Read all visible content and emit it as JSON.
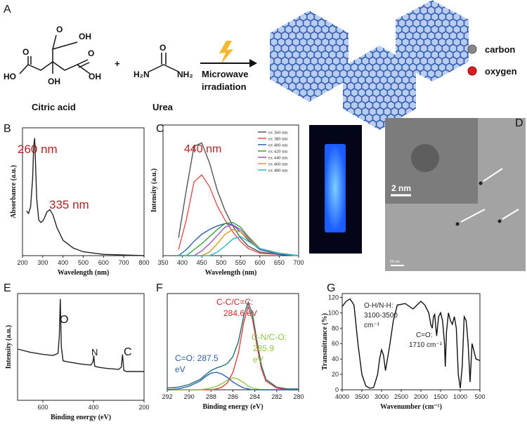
{
  "panels": [
    "A",
    "B",
    "C",
    "D",
    "E",
    "F",
    "G"
  ],
  "scheme": {
    "atoms": [
      "O",
      "OH",
      "O",
      "O",
      "HO",
      "OH",
      "OH",
      "O",
      "H₂N",
      "NH₂"
    ],
    "plus": "+",
    "names": [
      "Citric acid",
      "Urea"
    ],
    "arrow_label": [
      "Microwave",
      "irradiation"
    ],
    "legend": [
      "carbon",
      "oxygen"
    ]
  },
  "tem": {
    "scale_inset": "2 nm",
    "scale_main": "50 nm"
  },
  "chart_data": [
    {
      "type": "line",
      "xlabel": "Wavelength (nm)",
      "ylabel": "Absorbance (a.u.)",
      "xlim": [
        200,
        800
      ],
      "ylim": [
        0,
        1
      ],
      "xticks": [
        200,
        300,
        400,
        500,
        600,
        700,
        800
      ],
      "x": [
        220,
        230,
        240,
        250,
        255,
        260,
        265,
        270,
        280,
        290,
        300,
        310,
        320,
        335,
        350,
        370,
        400,
        450,
        500,
        600,
        700,
        800
      ],
      "series": [
        {
          "color": "#222222",
          "values": [
            0.35,
            0.33,
            0.38,
            0.6,
            0.85,
            0.92,
            0.7,
            0.45,
            0.28,
            0.26,
            0.27,
            0.3,
            0.34,
            0.36,
            0.32,
            0.22,
            0.12,
            0.06,
            0.03,
            0.01,
            0.005,
            0
          ]
        }
      ],
      "annotations": [
        {
          "text": "260 nm",
          "color": "#b22222"
        },
        {
          "text": "335 nm",
          "color": "#b22222"
        }
      ]
    },
    {
      "type": "line",
      "xlabel": "Wavelength (nm)",
      "ylabel": "Intensity (a.u.)",
      "xlim": [
        350,
        700
      ],
      "ylim": [
        0,
        1.1
      ],
      "xticks": [
        350,
        400,
        450,
        500,
        550,
        600,
        650,
        700
      ],
      "legend": true,
      "x": [
        390,
        410,
        430,
        450,
        470,
        490,
        510,
        530,
        550,
        570,
        600,
        650,
        700
      ],
      "series": [
        {
          "name": "ex 360 nm",
          "color": "#555555",
          "values": [
            0.15,
            0.55,
            0.92,
            0.95,
            0.78,
            0.55,
            0.38,
            0.25,
            0.15,
            0.08,
            0.03,
            0.01,
            0
          ]
        },
        {
          "name": "ex 380 nm",
          "color": "#d9534f",
          "values": [
            0.05,
            0.3,
            0.62,
            0.68,
            0.58,
            0.42,
            0.3,
            0.2,
            0.12,
            0.06,
            0.02,
            0.01,
            0
          ]
        },
        {
          "name": "ex 400 nm",
          "color": "#2e5fa8",
          "values": [
            0,
            0.05,
            0.12,
            0.18,
            0.22,
            0.25,
            0.27,
            0.26,
            0.2,
            0.13,
            0.05,
            0.01,
            0
          ]
        },
        {
          "name": "ex 420 nm",
          "color": "#3a9e3a",
          "values": [
            0,
            0,
            0.05,
            0.1,
            0.16,
            0.22,
            0.27,
            0.28,
            0.24,
            0.16,
            0.06,
            0.02,
            0
          ]
        },
        {
          "name": "ex 440 nm",
          "color": "#9b59b6",
          "values": [
            0,
            0,
            0,
            0.04,
            0.1,
            0.17,
            0.24,
            0.26,
            0.22,
            0.15,
            0.06,
            0.02,
            0
          ]
        },
        {
          "name": "ex 460 nm",
          "color": "#d99a1a",
          "values": [
            0,
            0,
            0,
            0,
            0.03,
            0.1,
            0.18,
            0.22,
            0.2,
            0.14,
            0.06,
            0.02,
            0
          ]
        },
        {
          "name": "ex 480 nm",
          "color": "#2ab6c8",
          "values": [
            0,
            0,
            0,
            0,
            0,
            0.03,
            0.08,
            0.14,
            0.16,
            0.12,
            0.06,
            0.02,
            0
          ]
        }
      ],
      "annotations": [
        {
          "text": "440 nm",
          "color": "#b22222"
        }
      ]
    },
    {
      "type": "line",
      "xlabel": "Binding energy (eV)",
      "ylabel": "Intensity (a.u.)",
      "xlim": [
        700,
        200
      ],
      "ylim": [
        0,
        1
      ],
      "xticks": [
        600,
        400,
        200
      ],
      "x": [
        700,
        650,
        600,
        560,
        540,
        535,
        531,
        527,
        520,
        500,
        450,
        410,
        402,
        399,
        395,
        380,
        350,
        300,
        290,
        285,
        280,
        270,
        250,
        200
      ],
      "series": [
        {
          "color": "#222222",
          "values": [
            0.48,
            0.45,
            0.43,
            0.42,
            0.44,
            0.6,
            0.95,
            0.5,
            0.37,
            0.36,
            0.34,
            0.33,
            0.36,
            0.42,
            0.32,
            0.31,
            0.3,
            0.29,
            0.31,
            0.43,
            0.28,
            0.27,
            0.27,
            0.27
          ]
        }
      ],
      "annotations": [
        {
          "text": "O",
          "color": "#111111"
        },
        {
          "text": "N",
          "color": "#111111"
        },
        {
          "text": "C",
          "color": "#111111"
        }
      ]
    },
    {
      "type": "line",
      "xlabel": "Binding energy (eV)",
      "xlim": [
        292,
        280
      ],
      "ylim": [
        0,
        1.1
      ],
      "xticks": [
        292,
        290,
        288,
        286,
        284,
        282,
        280
      ],
      "x": [
        292,
        291,
        290,
        289,
        288.5,
        288,
        287.5,
        287,
        286.5,
        286,
        285.5,
        285,
        284.6,
        284.2,
        283.8,
        283.4,
        283,
        282,
        281,
        280
      ],
      "series": [
        {
          "color": "#1f6f6f",
          "values": [
            0.02,
            0.03,
            0.06,
            0.12,
            0.17,
            0.22,
            0.25,
            0.27,
            0.3,
            0.38,
            0.55,
            0.85,
            1.0,
            0.85,
            0.55,
            0.28,
            0.12,
            0.03,
            0.01,
            0.01
          ]
        },
        {
          "color": "#e04040",
          "values": [
            0,
            0,
            0,
            0,
            0,
            0,
            0.01,
            0.03,
            0.08,
            0.2,
            0.42,
            0.78,
            0.95,
            0.8,
            0.5,
            0.24,
            0.1,
            0.02,
            0,
            0
          ]
        },
        {
          "color": "#8cc63f",
          "values": [
            0,
            0,
            0,
            0,
            0.01,
            0.02,
            0.04,
            0.07,
            0.11,
            0.14,
            0.12,
            0.08,
            0.04,
            0.02,
            0.01,
            0,
            0,
            0,
            0,
            0
          ]
        },
        {
          "color": "#2e5fa8",
          "values": [
            0,
            0.01,
            0.04,
            0.1,
            0.15,
            0.19,
            0.2,
            0.18,
            0.14,
            0.09,
            0.05,
            0.02,
            0.01,
            0,
            0,
            0,
            0,
            0,
            0,
            0
          ]
        }
      ],
      "annotations": [
        {
          "text": "C-C/C=C:",
          "color": "#d62728"
        },
        {
          "text": "284.6 eV",
          "color": "#d62728"
        },
        {
          "text": "C=O: 287.5",
          "color": "#2e5fa8"
        },
        {
          "text": "eV",
          "color": "#2e5fa8"
        },
        {
          "text": "C-N/C-O:",
          "color": "#8cc63f"
        },
        {
          "text": "285.9",
          "color": "#8cc63f"
        },
        {
          "text": "eV",
          "color": "#8cc63f"
        }
      ]
    },
    {
      "type": "line",
      "xlabel": "Wavenumber (cm⁻¹)",
      "ylabel": "Transmittance (%)",
      "xlim": [
        4000,
        500
      ],
      "ylim": [
        0,
        125
      ],
      "xticks": [
        4000,
        3500,
        3000,
        2500,
        2000,
        1500,
        1000,
        500
      ],
      "yticks": [
        0,
        20,
        40,
        60,
        80,
        100,
        120
      ],
      "x": [
        4000,
        3900,
        3800,
        3700,
        3600,
        3500,
        3400,
        3300,
        3200,
        3100,
        3050,
        3000,
        2950,
        2900,
        2800,
        2700,
        2600,
        2400,
        2200,
        2000,
        1900,
        1800,
        1750,
        1710,
        1680,
        1650,
        1600,
        1550,
        1500,
        1450,
        1400,
        1380,
        1350,
        1300,
        1250,
        1200,
        1150,
        1100,
        1050,
        1000,
        950,
        900,
        850,
        800,
        750,
        700,
        600,
        500
      ],
      "series": [
        {
          "color": "#111111",
          "values": [
            108,
            115,
            118,
            110,
            60,
            20,
            5,
            2,
            3,
            20,
            40,
            52,
            45,
            25,
            55,
            90,
            110,
            112,
            105,
            115,
            110,
            100,
            85,
            80,
            95,
            98,
            70,
            95,
            100,
            90,
            60,
            30,
            75,
            100,
            90,
            85,
            95,
            80,
            20,
            2,
            30,
            95,
            90,
            60,
            10,
            60,
            40,
            38
          ]
        }
      ],
      "annotations": [
        {
          "text": "O-H/N-H:",
          "color": "#222222"
        },
        {
          "text": "3100-3500",
          "color": "#222222"
        },
        {
          "text": "cm⁻¹",
          "color": "#222222"
        },
        {
          "text": "C=O:",
          "color": "#222222"
        },
        {
          "text": "1710 cm⁻¹",
          "color": "#222222"
        }
      ]
    }
  ]
}
